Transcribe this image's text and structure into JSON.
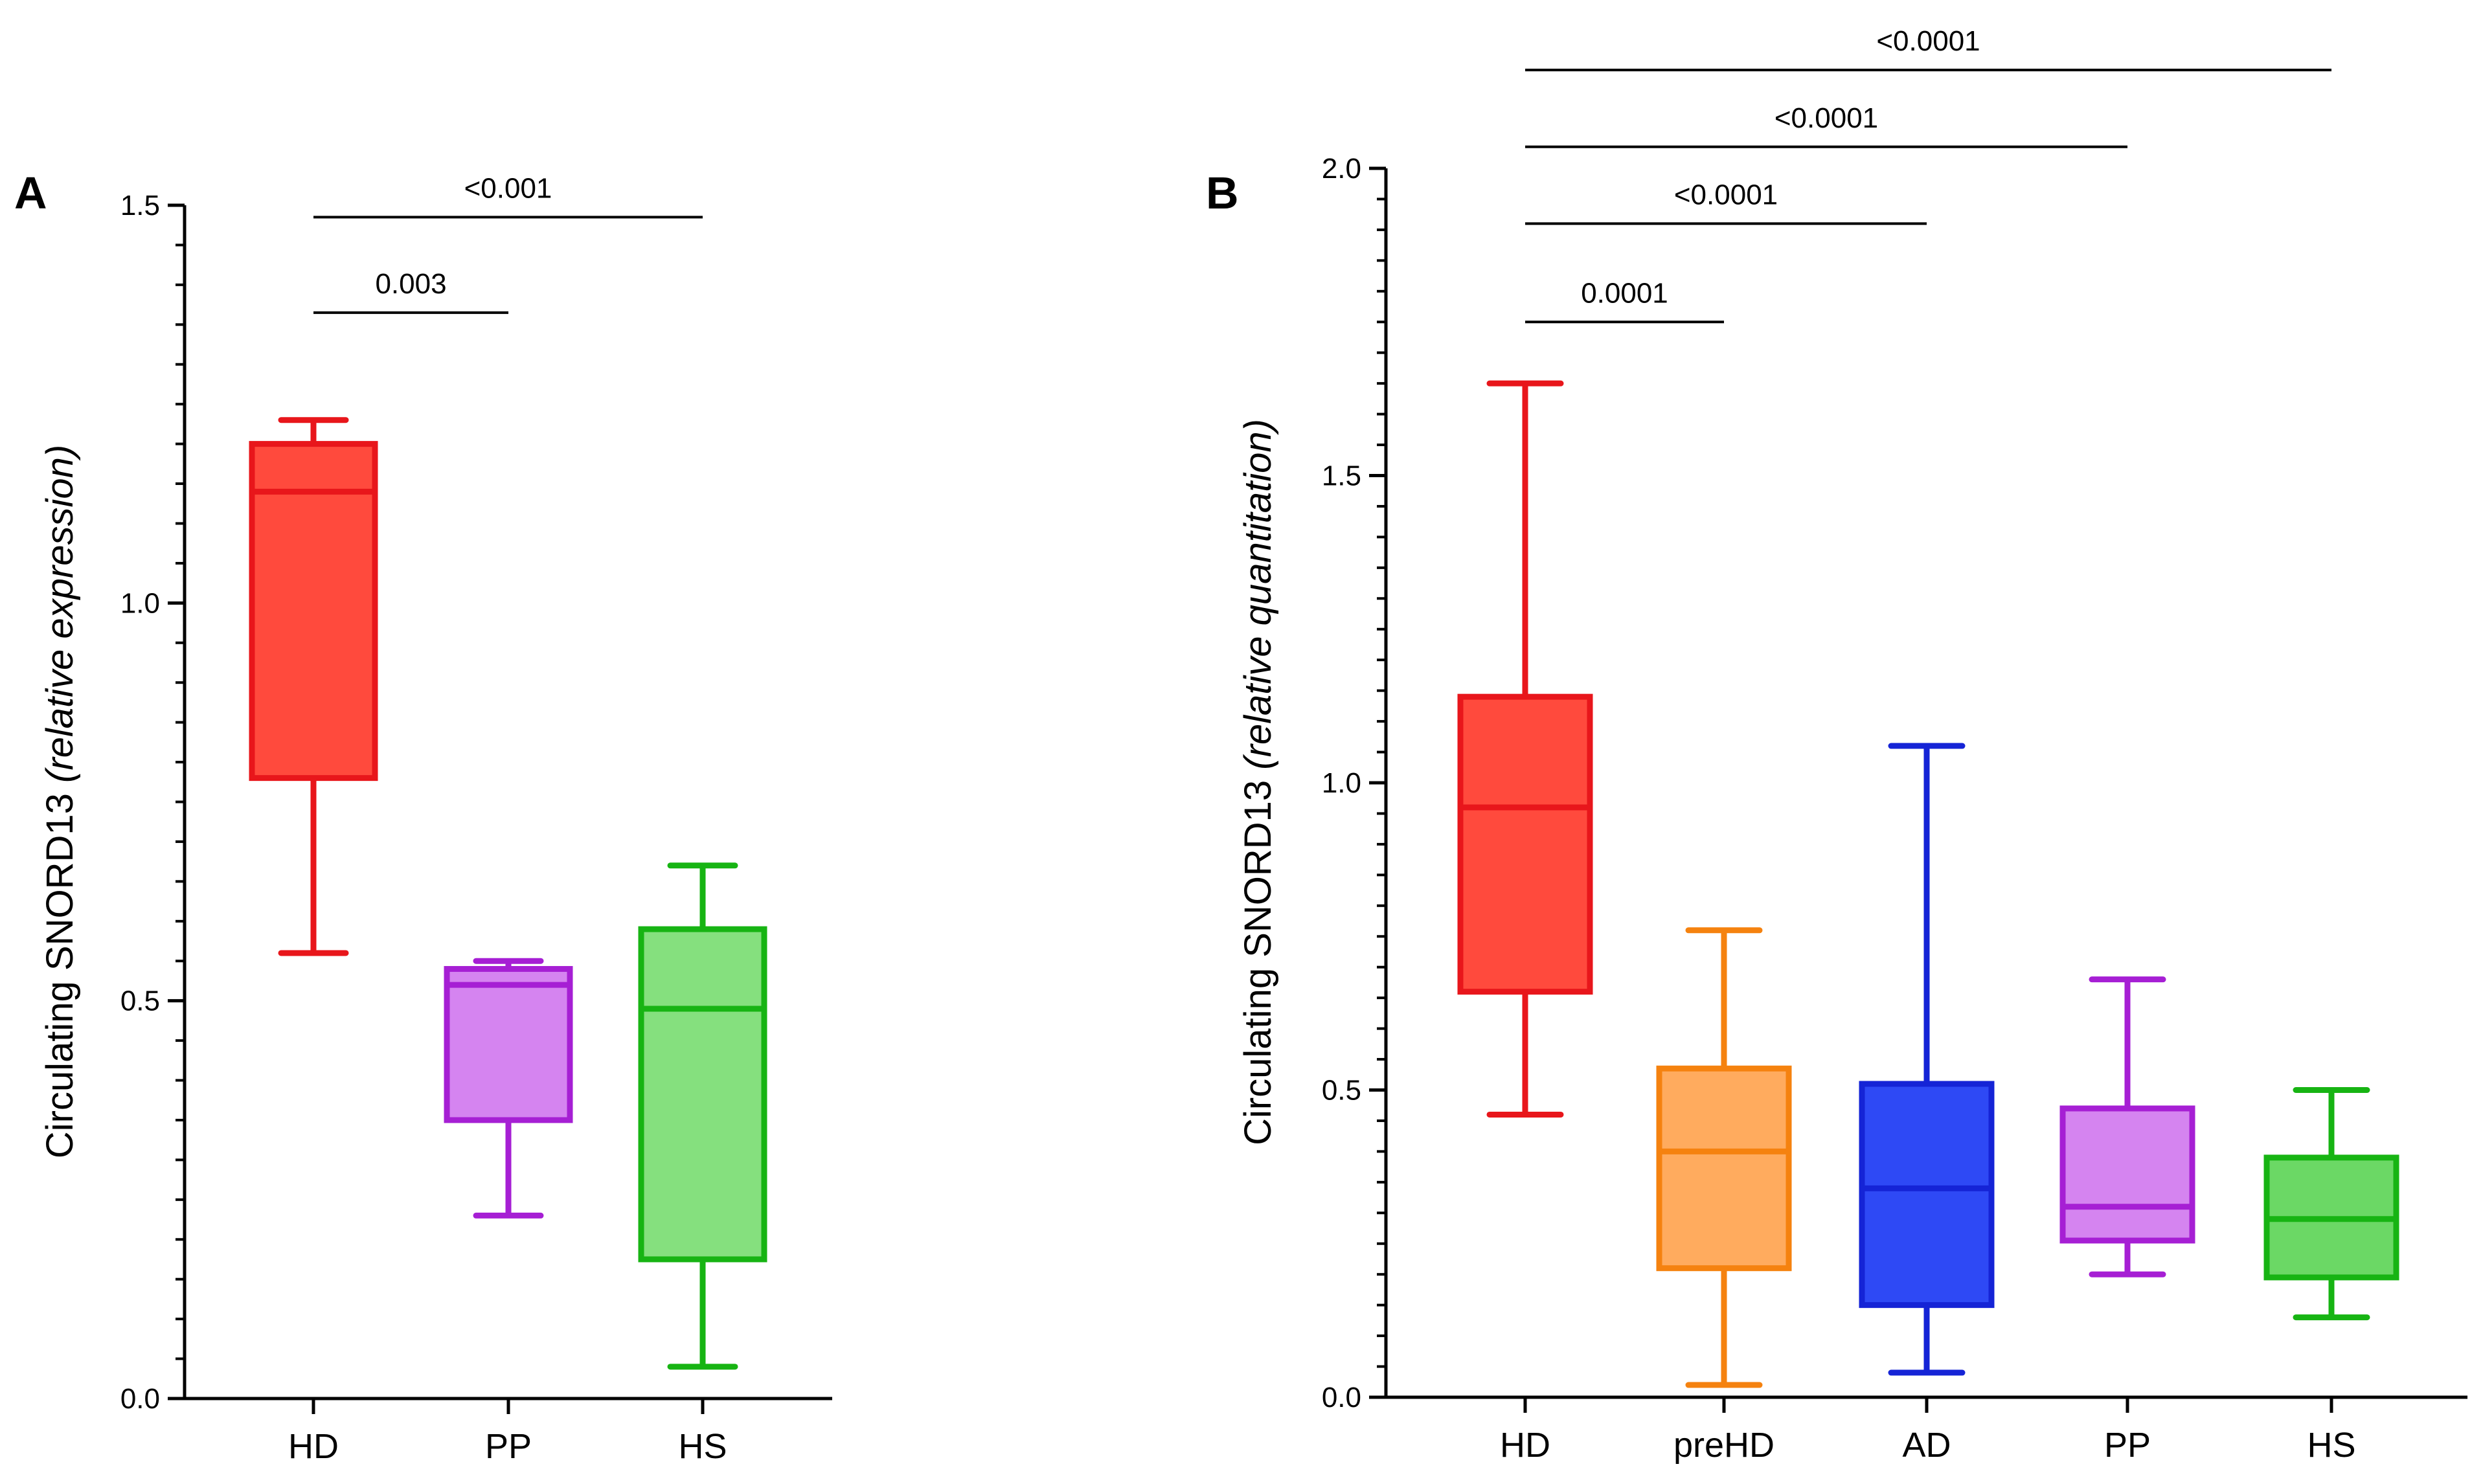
{
  "chart_data": [
    {
      "type": "box",
      "panel": "A",
      "ylabel_prefix": "Circulating SNORD13 ",
      "ylabel_italic": "(relative expression)",
      "ylim": [
        0,
        1.5
      ],
      "yticks": [
        0,
        0.5,
        1.0,
        1.5
      ],
      "ytick_labels": [
        "0.0",
        "0.5",
        "1.0",
        "1.5"
      ],
      "minor_step": 0.05,
      "categories": [
        "HD",
        "PP",
        "HS"
      ],
      "boxes": [
        {
          "name": "HD",
          "min": 0.56,
          "q1": 0.78,
          "median": 1.14,
          "q3": 1.2,
          "max": 1.23,
          "stroke": "#e8161b",
          "fill": "#ff4a3d"
        },
        {
          "name": "PP",
          "min": 0.23,
          "q1": 0.35,
          "median": 0.52,
          "q3": 0.54,
          "max": 0.55,
          "stroke": "#a61fd4",
          "fill": "#d584f0"
        },
        {
          "name": "HS",
          "min": 0.04,
          "q1": 0.175,
          "median": 0.49,
          "q3": 0.59,
          "max": 0.67,
          "stroke": "#17b413",
          "fill": "#85e07e"
        }
      ],
      "comparisons": [
        {
          "from": 0,
          "to": 1,
          "y": 1.365,
          "label": "0.003"
        },
        {
          "from": 0,
          "to": 2,
          "y": 1.485,
          "label": "<0.001"
        }
      ]
    },
    {
      "type": "box",
      "panel": "B",
      "ylabel_prefix": "Circulating SNORD13 ",
      "ylabel_italic": "(relative quantitation)",
      "ylim": [
        0,
        2.0
      ],
      "yticks": [
        0,
        0.5,
        1.0,
        1.5,
        2.0
      ],
      "ytick_labels": [
        "0.0",
        "0.5",
        "1.0",
        "1.5",
        "2.0"
      ],
      "minor_step": 0.05,
      "categories": [
        "HD",
        "preHD",
        "AD",
        "PP",
        "HS"
      ],
      "boxes": [
        {
          "name": "HD",
          "min": 0.46,
          "q1": 0.66,
          "median": 0.96,
          "q3": 1.14,
          "max": 1.65,
          "stroke": "#e8161b",
          "fill": "#ff4a3d"
        },
        {
          "name": "preHD",
          "min": 0.02,
          "q1": 0.21,
          "median": 0.4,
          "q3": 0.535,
          "max": 0.76,
          "stroke": "#f5820f",
          "fill": "#ffab5e"
        },
        {
          "name": "AD",
          "min": 0.04,
          "q1": 0.15,
          "median": 0.34,
          "q3": 0.51,
          "max": 1.06,
          "stroke": "#1524d6",
          "fill": "#2e49f5"
        },
        {
          "name": "PP",
          "min": 0.2,
          "q1": 0.255,
          "median": 0.31,
          "q3": 0.47,
          "max": 0.68,
          "stroke": "#a61fd4",
          "fill": "#d584f0"
        },
        {
          "name": "HS",
          "min": 0.13,
          "q1": 0.195,
          "median": 0.29,
          "q3": 0.39,
          "max": 0.5,
          "stroke": "#17b413",
          "fill": "#6bd865"
        }
      ],
      "comparisons": [
        {
          "from": 0,
          "to": 1,
          "y": 1.75,
          "label": "0.0001"
        },
        {
          "from": 0,
          "to": 2,
          "y": 1.91,
          "label": "<0.0001"
        },
        {
          "from": 0,
          "to": 3,
          "y": 2.035,
          "label": "<0.0001"
        },
        {
          "from": 0,
          "to": 4,
          "y": 2.16,
          "label": "<0.0001"
        }
      ]
    }
  ]
}
